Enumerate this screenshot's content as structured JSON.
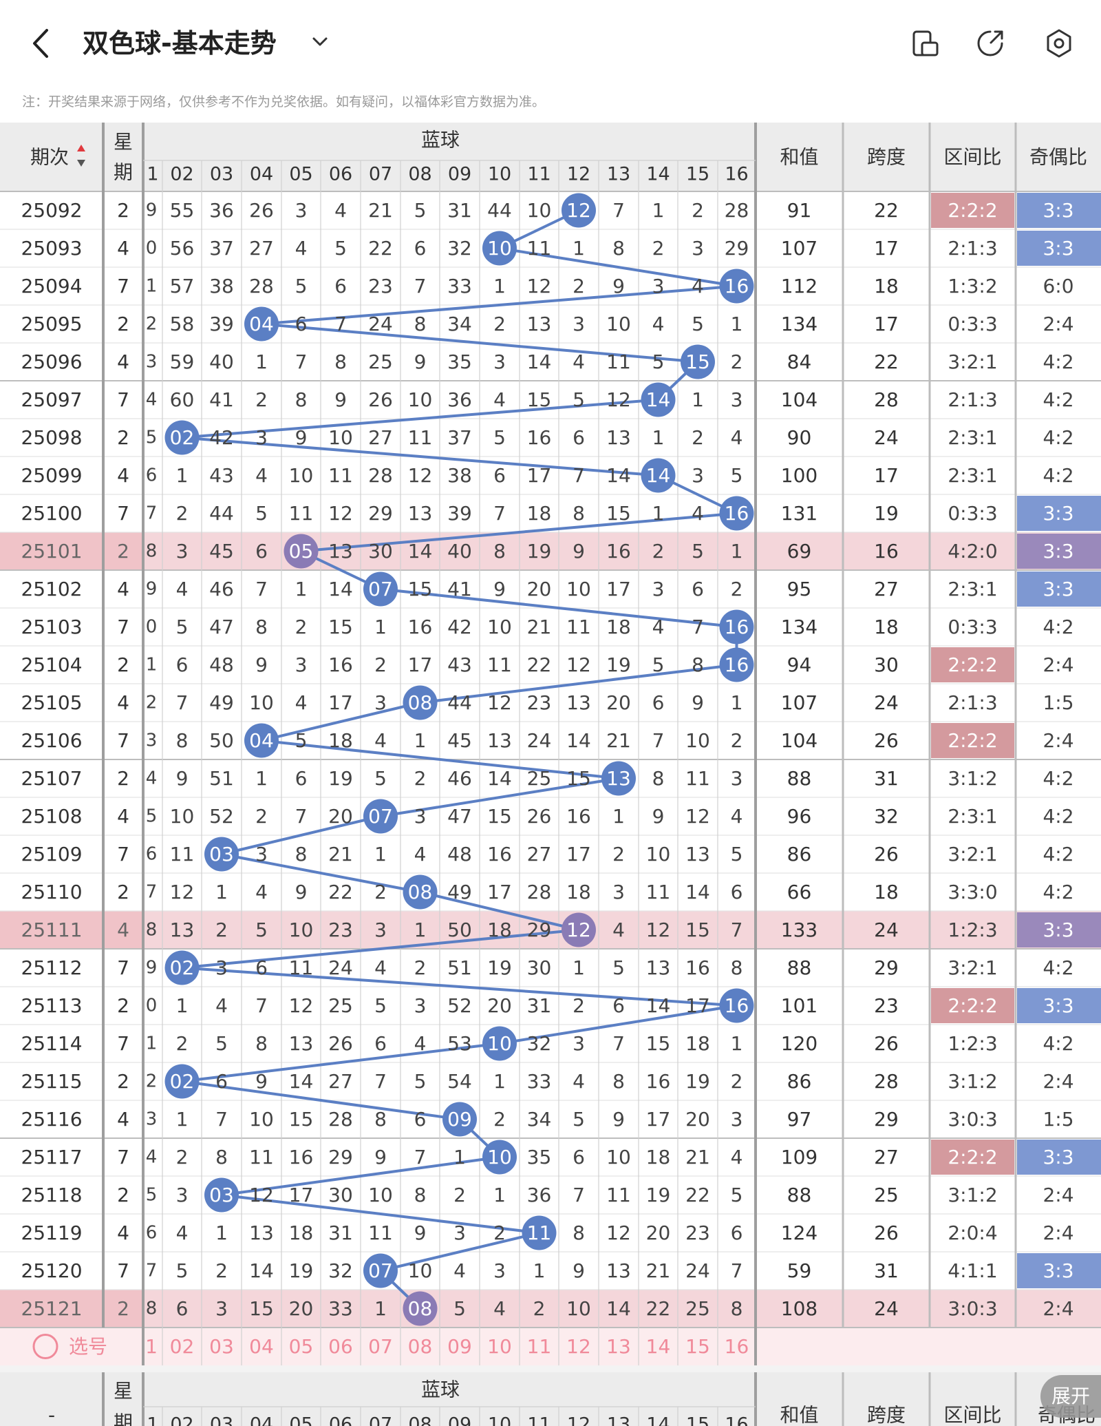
{
  "header": {
    "title": "双色球-基本走势"
  },
  "icons": {
    "back": "back-arrow-icon",
    "dropdown": "chevron-down-icon",
    "device": "device-icon",
    "share": "share-icon",
    "settings": "settings-gear-icon",
    "sort": "sort-icon",
    "radio": "radio-circle-icon"
  },
  "notice": "注：开奖结果来源于网络，仅供参考不作为兑奖依据。如有疑问，以福体彩官方数据为准。",
  "table": {
    "col_period": "期次",
    "col_weekday": "星期",
    "col_blue": "蓝球",
    "col_sum": "和值",
    "col_span": "跨度",
    "col_zone": "区间比",
    "col_parity": "奇偶比",
    "blue_numbers": [
      "1",
      "02",
      "03",
      "04",
      "05",
      "06",
      "07",
      "08",
      "09",
      "10",
      "11",
      "12",
      "13",
      "14",
      "15",
      "16"
    ],
    "rows": [
      {
        "period": "25092",
        "week": "2",
        "cells": [
          9,
          55,
          36,
          26,
          3,
          4,
          21,
          5,
          31,
          44,
          10,
          "12",
          7,
          1,
          2,
          28
        ],
        "sum": "91",
        "span": "22",
        "zone": "2:2:2",
        "parity": "3:3"
      },
      {
        "period": "25093",
        "week": "4",
        "cells": [
          0,
          56,
          37,
          27,
          4,
          5,
          22,
          6,
          32,
          "10",
          11,
          1,
          8,
          2,
          3,
          29
        ],
        "sum": "107",
        "span": "17",
        "zone": "2:1:3",
        "parity": "3:3"
      },
      {
        "period": "25094",
        "week": "7",
        "cells": [
          1,
          57,
          38,
          28,
          5,
          6,
          23,
          7,
          33,
          1,
          12,
          2,
          9,
          3,
          4,
          "16"
        ],
        "sum": "112",
        "span": "18",
        "zone": "1:3:2",
        "parity": "6:0"
      },
      {
        "period": "25095",
        "week": "2",
        "cells": [
          2,
          58,
          39,
          "04",
          6,
          7,
          24,
          8,
          34,
          2,
          13,
          3,
          10,
          4,
          5,
          1
        ],
        "sum": "134",
        "span": "17",
        "zone": "0:3:3",
        "parity": "2:4"
      },
      {
        "period": "25096",
        "week": "4",
        "cells": [
          3,
          59,
          40,
          1,
          7,
          8,
          25,
          9,
          35,
          3,
          14,
          4,
          11,
          5,
          "15",
          2
        ],
        "sum": "84",
        "span": "22",
        "zone": "3:2:1",
        "parity": "4:2"
      },
      {
        "period": "25097",
        "week": "7",
        "cells": [
          4,
          60,
          41,
          2,
          8,
          9,
          26,
          10,
          36,
          4,
          15,
          5,
          12,
          "14",
          1,
          3
        ],
        "sum": "104",
        "span": "28",
        "zone": "2:1:3",
        "parity": "4:2"
      },
      {
        "period": "25098",
        "week": "2",
        "cells": [
          5,
          "02",
          42,
          3,
          9,
          10,
          27,
          11,
          37,
          5,
          16,
          6,
          13,
          1,
          2,
          4
        ],
        "sum": "90",
        "span": "24",
        "zone": "2:3:1",
        "parity": "4:2"
      },
      {
        "period": "25099",
        "week": "4",
        "cells": [
          6,
          1,
          43,
          4,
          10,
          11,
          28,
          12,
          38,
          6,
          17,
          7,
          14,
          "14",
          3,
          5
        ],
        "sum": "100",
        "span": "17",
        "zone": "2:3:1",
        "parity": "4:2"
      },
      {
        "period": "25100",
        "week": "7",
        "cells": [
          7,
          2,
          44,
          5,
          11,
          12,
          29,
          13,
          39,
          7,
          18,
          8,
          15,
          1,
          4,
          "16"
        ],
        "sum": "131",
        "span": "19",
        "zone": "0:3:3",
        "parity": "3:3"
      },
      {
        "period": "25101",
        "week": "2",
        "cells": [
          8,
          3,
          45,
          6,
          "05",
          13,
          30,
          14,
          40,
          8,
          19,
          9,
          16,
          2,
          5,
          1
        ],
        "sum": "69",
        "span": "16",
        "zone": "4:2:0",
        "parity": "3:3"
      },
      {
        "period": "25102",
        "week": "4",
        "cells": [
          9,
          4,
          46,
          7,
          1,
          14,
          "07",
          15,
          41,
          9,
          20,
          10,
          17,
          3,
          6,
          2
        ],
        "sum": "95",
        "span": "27",
        "zone": "2:3:1",
        "parity": "3:3"
      },
      {
        "period": "25103",
        "week": "7",
        "cells": [
          0,
          5,
          47,
          8,
          2,
          15,
          1,
          16,
          42,
          10,
          21,
          11,
          18,
          4,
          7,
          "16"
        ],
        "sum": "134",
        "span": "18",
        "zone": "0:3:3",
        "parity": "4:2"
      },
      {
        "period": "25104",
        "week": "2",
        "cells": [
          1,
          6,
          48,
          9,
          3,
          16,
          2,
          17,
          43,
          11,
          22,
          12,
          19,
          5,
          8,
          "16"
        ],
        "sum": "94",
        "span": "30",
        "zone": "2:2:2",
        "parity": "2:4"
      },
      {
        "period": "25105",
        "week": "4",
        "cells": [
          2,
          7,
          49,
          10,
          4,
          17,
          3,
          "08",
          44,
          12,
          23,
          13,
          20,
          6,
          9,
          1
        ],
        "sum": "107",
        "span": "24",
        "zone": "2:1:3",
        "parity": "1:5"
      },
      {
        "period": "25106",
        "week": "7",
        "cells": [
          3,
          8,
          50,
          "04",
          5,
          18,
          4,
          1,
          45,
          13,
          24,
          14,
          21,
          7,
          10,
          2
        ],
        "sum": "104",
        "span": "26",
        "zone": "2:2:2",
        "parity": "2:4"
      },
      {
        "period": "25107",
        "week": "2",
        "cells": [
          4,
          9,
          51,
          1,
          6,
          19,
          5,
          2,
          46,
          14,
          25,
          15,
          "13",
          8,
          11,
          3
        ],
        "sum": "88",
        "span": "31",
        "zone": "3:1:2",
        "parity": "4:2"
      },
      {
        "period": "25108",
        "week": "4",
        "cells": [
          5,
          10,
          52,
          2,
          7,
          20,
          "07",
          3,
          47,
          15,
          26,
          16,
          1,
          9,
          12,
          4
        ],
        "sum": "96",
        "span": "32",
        "zone": "2:3:1",
        "parity": "4:2"
      },
      {
        "period": "25109",
        "week": "7",
        "cells": [
          6,
          11,
          "03",
          3,
          8,
          21,
          1,
          4,
          48,
          16,
          27,
          17,
          2,
          10,
          13,
          5
        ],
        "sum": "86",
        "span": "26",
        "zone": "3:2:1",
        "parity": "4:2"
      },
      {
        "period": "25110",
        "week": "2",
        "cells": [
          7,
          12,
          1,
          4,
          9,
          22,
          2,
          "08",
          49,
          17,
          28,
          18,
          3,
          11,
          14,
          6
        ],
        "sum": "66",
        "span": "18",
        "zone": "3:3:0",
        "parity": "4:2"
      },
      {
        "period": "25111",
        "week": "4",
        "cells": [
          8,
          13,
          2,
          5,
          10,
          23,
          3,
          1,
          50,
          18,
          29,
          "12",
          4,
          12,
          15,
          7
        ],
        "sum": "133",
        "span": "24",
        "zone": "1:2:3",
        "parity": "3:3"
      },
      {
        "period": "25112",
        "week": "7",
        "cells": [
          9,
          "02",
          3,
          6,
          11,
          24,
          4,
          2,
          51,
          19,
          30,
          1,
          5,
          13,
          16,
          8
        ],
        "sum": "88",
        "span": "29",
        "zone": "3:2:1",
        "parity": "4:2"
      },
      {
        "period": "25113",
        "week": "2",
        "cells": [
          0,
          1,
          4,
          7,
          12,
          25,
          5,
          3,
          52,
          20,
          31,
          2,
          6,
          14,
          17,
          "16"
        ],
        "sum": "101",
        "span": "23",
        "zone": "2:2:2",
        "parity": "3:3"
      },
      {
        "period": "25114",
        "week": "7",
        "cells": [
          1,
          2,
          5,
          8,
          13,
          26,
          6,
          4,
          53,
          "10",
          32,
          3,
          7,
          15,
          18,
          1
        ],
        "sum": "120",
        "span": "26",
        "zone": "1:2:3",
        "parity": "4:2"
      },
      {
        "period": "25115",
        "week": "2",
        "cells": [
          2,
          "02",
          6,
          9,
          14,
          27,
          7,
          5,
          54,
          1,
          33,
          4,
          8,
          16,
          19,
          2
        ],
        "sum": "86",
        "span": "28",
        "zone": "3:1:2",
        "parity": "2:4"
      },
      {
        "period": "25116",
        "week": "4",
        "cells": [
          3,
          1,
          7,
          10,
          15,
          28,
          8,
          6,
          "09",
          2,
          34,
          5,
          9,
          17,
          20,
          3
        ],
        "sum": "97",
        "span": "29",
        "zone": "3:0:3",
        "parity": "1:5"
      },
      {
        "period": "25117",
        "week": "7",
        "cells": [
          4,
          2,
          8,
          11,
          16,
          29,
          9,
          7,
          1,
          "10",
          35,
          6,
          10,
          18,
          21,
          4
        ],
        "sum": "109",
        "span": "27",
        "zone": "2:2:2",
        "parity": "3:3"
      },
      {
        "period": "25118",
        "week": "2",
        "cells": [
          5,
          3,
          "03",
          12,
          17,
          30,
          10,
          8,
          2,
          1,
          36,
          7,
          11,
          19,
          22,
          5
        ],
        "sum": "88",
        "span": "25",
        "zone": "3:1:2",
        "parity": "2:4"
      },
      {
        "period": "25119",
        "week": "4",
        "cells": [
          6,
          4,
          1,
          13,
          18,
          31,
          11,
          9,
          3,
          2,
          "11",
          8,
          12,
          20,
          23,
          6
        ],
        "sum": "124",
        "span": "26",
        "zone": "2:0:4",
        "parity": "2:4"
      },
      {
        "period": "25120",
        "week": "7",
        "cells": [
          7,
          5,
          2,
          14,
          19,
          32,
          "07",
          10,
          4,
          3,
          1,
          9,
          13,
          21,
          24,
          7
        ],
        "sum": "59",
        "span": "31",
        "zone": "4:1:1",
        "parity": "3:3"
      },
      {
        "period": "25121",
        "week": "2",
        "cells": [
          8,
          6,
          3,
          15,
          20,
          33,
          1,
          "08",
          5,
          4,
          2,
          10,
          14,
          22,
          25,
          8
        ],
        "sum": "108",
        "span": "24",
        "zone": "3:0:3",
        "parity": "2:4"
      }
    ],
    "hits": [
      11,
      9,
      15,
      3,
      14,
      13,
      1,
      13,
      15,
      4,
      6,
      15,
      15,
      7,
      3,
      12,
      6,
      2,
      7,
      11,
      1,
      15,
      9,
      1,
      8,
      9,
      2,
      10,
      6,
      7
    ],
    "highlight_rows": [
      9,
      19,
      29
    ],
    "zone_highlight": [
      0,
      12,
      14,
      21,
      25
    ],
    "parity_highlight": [
      0,
      1,
      8,
      9,
      10,
      19,
      21,
      25,
      28
    ],
    "select_label": "选号",
    "footer_dash": "-"
  },
  "expand_label": "展开",
  "colors": {
    "blue_ball": "#5b7fc4",
    "purple_ball": "#8a7bb5",
    "line": "#5b7fc4",
    "header_bg": "#ececec",
    "highlight_row": "#f4d6da",
    "zone_badge": "#d49a9e",
    "parity_badge": "#7e98d2",
    "select_row": "#fcecee",
    "select_text": "#f08a9a"
  }
}
